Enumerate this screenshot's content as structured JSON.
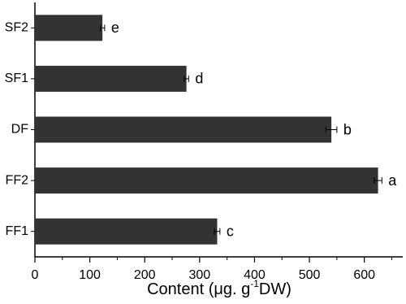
{
  "chart_data": {
    "type": "hbar",
    "categories": [
      "SF2",
      "SF1",
      "DF",
      "FF2",
      "FF1"
    ],
    "values": [
      123,
      276,
      540,
      625,
      332
    ],
    "errors": [
      4,
      4,
      10,
      7,
      5
    ],
    "annotations": [
      "e",
      "d",
      "b",
      "a",
      "c"
    ],
    "color": "#333333",
    "xlim": [
      0,
      670
    ],
    "xticks": [
      0,
      100,
      200,
      300,
      400,
      500,
      600
    ],
    "xminorticks": [
      50,
      150,
      250,
      350,
      450,
      550,
      650
    ],
    "xlabel": {
      "text": "Content (μg. g",
      "sup": "-1",
      "tail": "DW)"
    },
    "grid": false
  }
}
